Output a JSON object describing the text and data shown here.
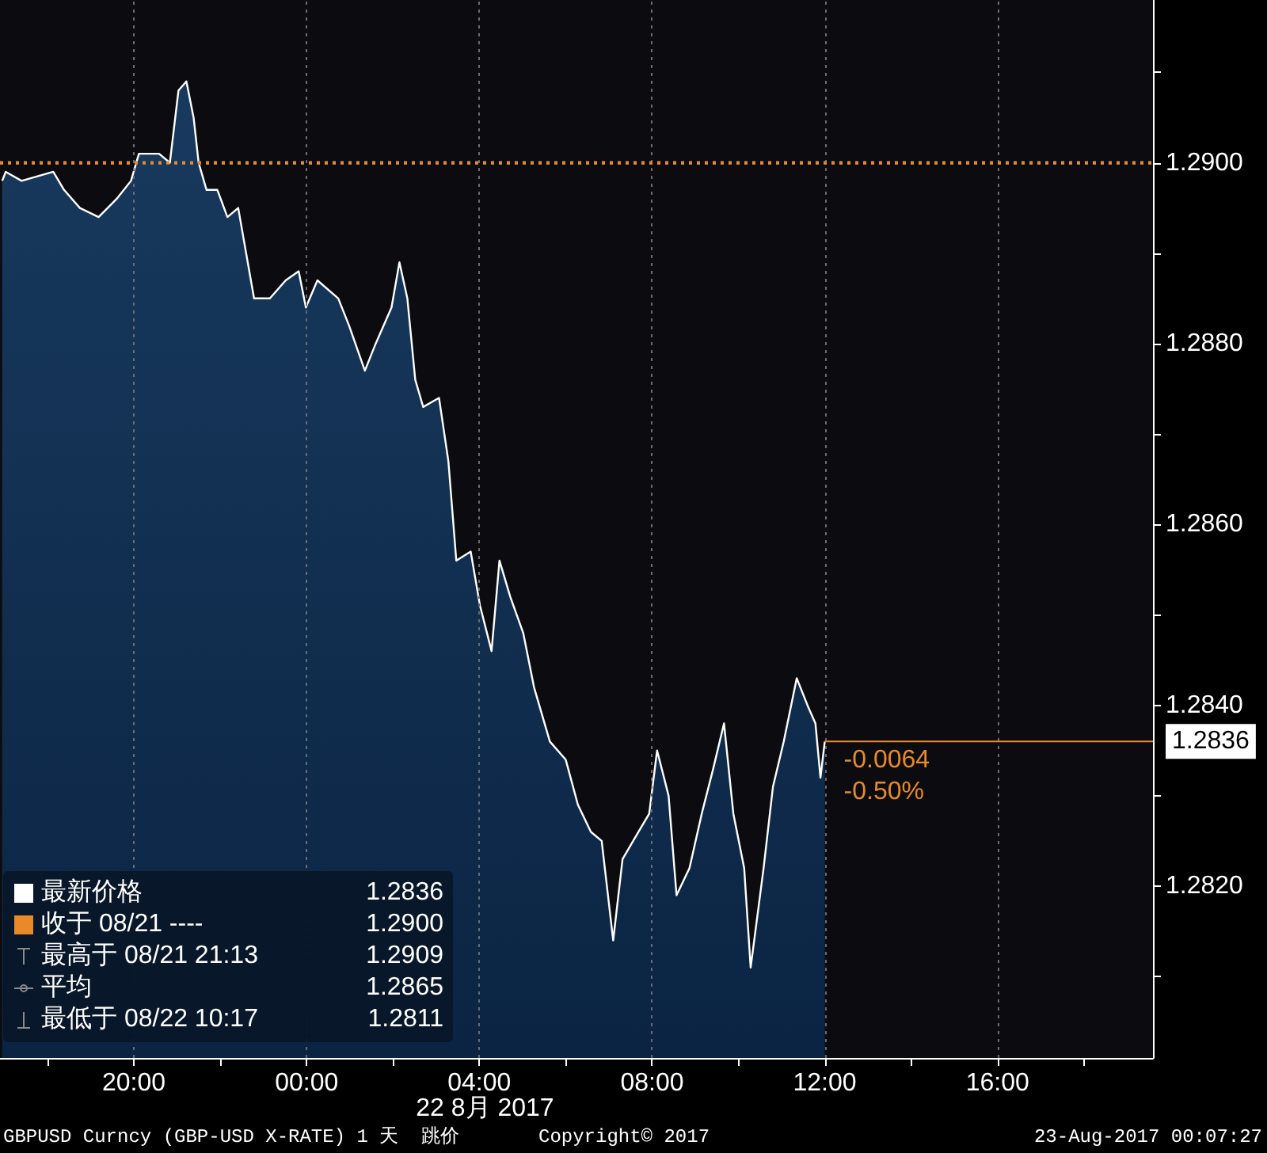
{
  "chart_data": {
    "type": "area",
    "xlabel": "22 8月 2017",
    "xlim": [
      "2017-08-21T16:54",
      "2017-08-22T19:36"
    ],
    "xticks": [
      {
        "value": "2017-08-21T18:00",
        "label": null
      },
      {
        "value": "2017-08-21T20:00",
        "label": "20:00"
      },
      {
        "value": "2017-08-21T22:00",
        "label": null
      },
      {
        "value": "2017-08-22T00:00",
        "label": "00:00"
      },
      {
        "value": "2017-08-22T02:00",
        "label": null
      },
      {
        "value": "2017-08-22T04:00",
        "label": "04:00"
      },
      {
        "value": "2017-08-22T06:00",
        "label": null
      },
      {
        "value": "2017-08-22T08:00",
        "label": "08:00"
      },
      {
        "value": "2017-08-22T10:00",
        "label": null
      },
      {
        "value": "2017-08-22T12:00",
        "label": "12:00"
      },
      {
        "value": "2017-08-22T14:00",
        "label": null
      },
      {
        "value": "2017-08-22T16:00",
        "label": "16:00"
      },
      {
        "value": "2017-08-22T18:00",
        "label": null
      }
    ],
    "ylim": [
      1.2801,
      1.2918
    ],
    "yticks": [
      {
        "value": 1.281,
        "label": null
      },
      {
        "value": 1.282,
        "label": "1.2820"
      },
      {
        "value": 1.283,
        "label": null
      },
      {
        "value": 1.284,
        "label": "1.2840"
      },
      {
        "value": 1.285,
        "label": null
      },
      {
        "value": 1.286,
        "label": "1.2860"
      },
      {
        "value": 1.287,
        "label": null
      },
      {
        "value": 1.288,
        "label": "1.2880"
      },
      {
        "value": 1.289,
        "label": null
      },
      {
        "value": 1.29,
        "label": "1.2900"
      },
      {
        "value": 1.291,
        "label": null
      }
    ],
    "grid": true,
    "series": [
      {
        "color": "#ffffff",
        "x": [
          "2017-08-21T16:57",
          "2017-08-21T17:02",
          "2017-08-21T17:24",
          "2017-08-21T18:08",
          "2017-08-21T18:23",
          "2017-08-21T18:45",
          "2017-08-21T19:11",
          "2017-08-21T19:36",
          "2017-08-21T19:56",
          "2017-08-21T20:07",
          "2017-08-21T20:35",
          "2017-08-21T20:50",
          "2017-08-21T21:02",
          "2017-08-21T21:13",
          "2017-08-21T21:23",
          "2017-08-21T21:30",
          "2017-08-21T21:41",
          "2017-08-21T21:56",
          "2017-08-21T22:10",
          "2017-08-21T22:25",
          "2017-08-21T22:36",
          "2017-08-21T22:47",
          "2017-08-21T23:09",
          "2017-08-21T23:31",
          "2017-08-21T23:49",
          "2017-08-21T23:59",
          "2017-08-22T00:15",
          "2017-08-22T00:44",
          "2017-08-22T00:59",
          "2017-08-22T01:21",
          "2017-08-22T01:36",
          "2017-08-22T01:58",
          "2017-08-22T02:09",
          "2017-08-22T02:20",
          "2017-08-22T02:31",
          "2017-08-22T02:42",
          "2017-08-22T03:04",
          "2017-08-22T03:17",
          "2017-08-22T03:28",
          "2017-08-22T03:48",
          "2017-08-22T04:01",
          "2017-08-22T04:17",
          "2017-08-22T04:28",
          "2017-08-22T04:43",
          "2017-08-22T05:01",
          "2017-08-22T05:16",
          "2017-08-22T05:38",
          "2017-08-22T06:00",
          "2017-08-22T06:17",
          "2017-08-22T06:35",
          "2017-08-22T06:50",
          "2017-08-22T07:06",
          "2017-08-22T07:19",
          "2017-08-22T07:41",
          "2017-08-22T07:56",
          "2017-08-22T08:07",
          "2017-08-22T08:23",
          "2017-08-22T08:34",
          "2017-08-22T08:52",
          "2017-08-22T09:09",
          "2017-08-22T09:25",
          "2017-08-22T09:40",
          "2017-08-22T09:53",
          "2017-08-22T10:08",
          "2017-08-22T10:17",
          "2017-08-22T10:35",
          "2017-08-22T10:48",
          "2017-08-22T11:03",
          "2017-08-22T11:21",
          "2017-08-22T11:36",
          "2017-08-22T11:47",
          "2017-08-22T11:54",
          "2017-08-22T12:00"
        ],
        "values": [
          1.2898,
          1.2899,
          1.2898,
          1.2899,
          1.2897,
          1.2895,
          1.2894,
          1.2896,
          1.2898,
          1.2901,
          1.2901,
          1.29,
          1.2908,
          1.2909,
          1.2905,
          1.29,
          1.2897,
          1.2897,
          1.2894,
          1.2895,
          1.289,
          1.2885,
          1.2885,
          1.2887,
          1.2888,
          1.2884,
          1.2887,
          1.2885,
          1.2882,
          1.2877,
          1.288,
          1.2884,
          1.2889,
          1.2885,
          1.2876,
          1.2873,
          1.2874,
          1.2867,
          1.2856,
          1.2857,
          1.2851,
          1.2846,
          1.2856,
          1.2852,
          1.2848,
          1.2842,
          1.2836,
          1.2834,
          1.2829,
          1.2826,
          1.2825,
          1.2814,
          1.2823,
          1.2826,
          1.2828,
          1.2835,
          1.283,
          1.2819,
          1.2822,
          1.2828,
          1.2833,
          1.2838,
          1.2828,
          1.2822,
          1.2811,
          1.2822,
          1.2831,
          1.2836,
          1.2843,
          1.284,
          1.2838,
          1.2832,
          1.2836
        ]
      }
    ],
    "ref_lines": [
      {
        "axis": "y",
        "value": 1.29,
        "color": "#e8892a",
        "line_style": "dotted"
      },
      {
        "axis": "y",
        "value": 1.2836,
        "label": "1.2836",
        "color": "#e8892a",
        "line_style": "solid"
      }
    ],
    "annotations": [
      {
        "text": "-0.0064",
        "x": "2017-08-22T12:00",
        "y": 1.2836
      },
      {
        "text": "-0.50%",
        "x": "2017-08-22T12:00",
        "y": 1.2836
      },
      "最新价格 1.2836",
      "收于 08/21 ---- 1.2900",
      "最高于 08/21 21:13 1.2909",
      "平均 1.2865",
      "最低于 08/22 10:17 1.2811",
      "GBPUSD Curncy (GBP-USD X-RATE) 1 天  跳价",
      "Copyright© 2017",
      "23-Aug-2017 00:07:27"
    ]
  }
}
